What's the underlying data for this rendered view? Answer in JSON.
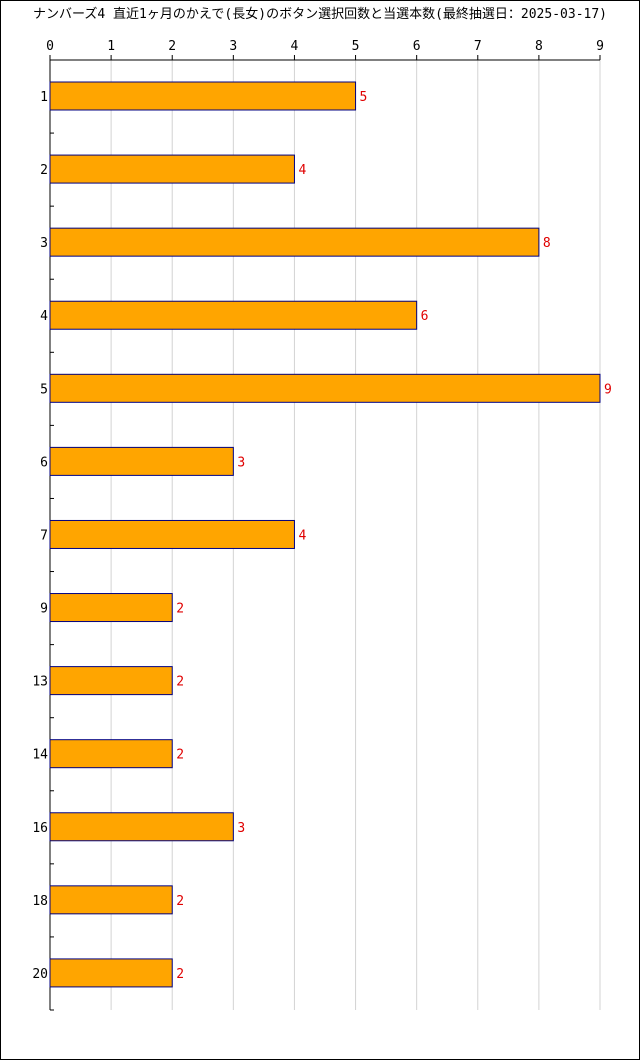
{
  "chart_data": {
    "type": "bar",
    "orientation": "horizontal",
    "title": "ナンバーズ4 直近1ヶ月のかえで(長女)のボタン選択回数と当選本数(最終抽選日：2025-03-17)",
    "categories": [
      "1",
      "2",
      "3",
      "4",
      "5",
      "6",
      "7",
      "9",
      "13",
      "14",
      "16",
      "18",
      "20"
    ],
    "values": [
      5,
      4,
      8,
      6,
      9,
      3,
      4,
      2,
      2,
      2,
      3,
      2,
      2
    ],
    "xlim": [
      0,
      9
    ],
    "xticks": [
      0,
      1,
      2,
      3,
      4,
      5,
      6,
      7,
      8,
      9
    ],
    "grid": "vertical",
    "xaxis_position": "top",
    "data_labels": true,
    "colors": {
      "bar_fill": "#FFA500",
      "bar_stroke": "#000080",
      "data_label": "#E00000",
      "grid": "#D3D3D3",
      "axis": "#000000"
    }
  }
}
